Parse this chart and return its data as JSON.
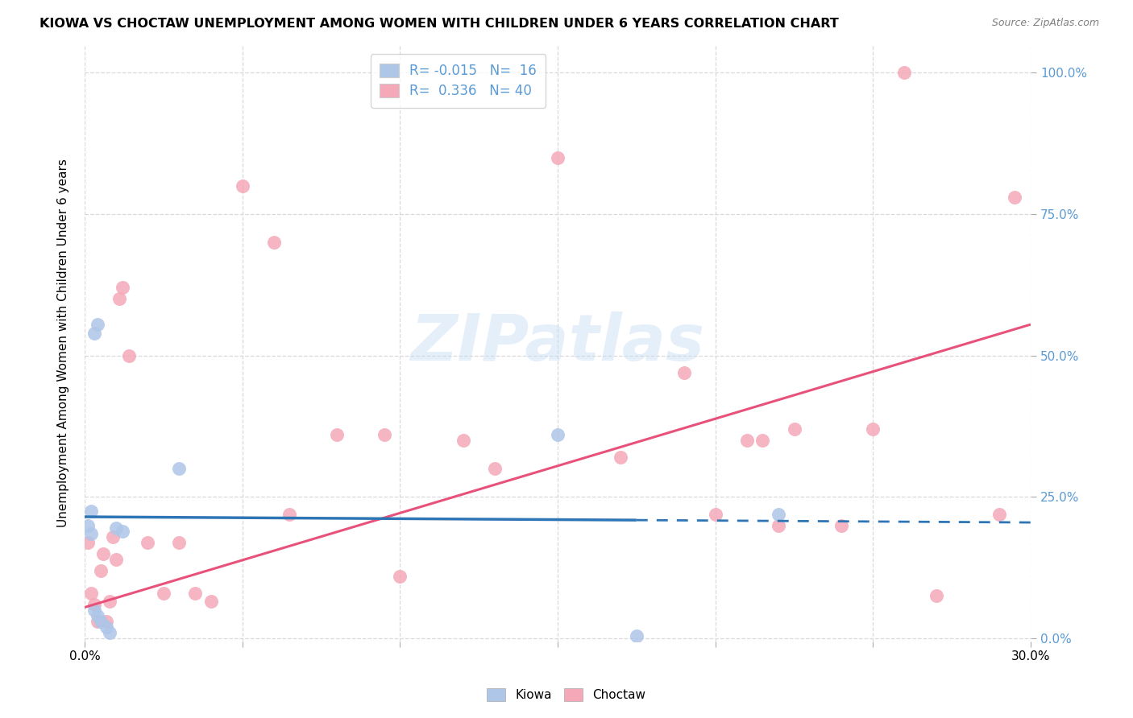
{
  "title": "KIOWA VS CHOCTAW UNEMPLOYMENT AMONG WOMEN WITH CHILDREN UNDER 6 YEARS CORRELATION CHART",
  "source": "Source: ZipAtlas.com",
  "ylabel": "Unemployment Among Women with Children Under 6 years",
  "xlim": [
    0.0,
    0.3
  ],
  "ylim": [
    -0.005,
    1.05
  ],
  "yticks": [
    0.0,
    0.25,
    0.5,
    0.75,
    1.0
  ],
  "ytick_labels": [
    "0.0%",
    "25.0%",
    "50.0%",
    "75.0%",
    "100.0%"
  ],
  "xticks": [
    0.0,
    0.05,
    0.1,
    0.15,
    0.2,
    0.25,
    0.3
  ],
  "xtick_labels": [
    "0.0%",
    "",
    "",
    "",
    "",
    "",
    "30.0%"
  ],
  "kiowa_x": [
    0.001,
    0.002,
    0.003,
    0.004,
    0.005,
    0.007,
    0.008,
    0.01,
    0.012,
    0.003,
    0.004,
    0.03,
    0.15,
    0.175,
    0.22,
    0.002
  ],
  "kiowa_y": [
    0.2,
    0.185,
    0.05,
    0.04,
    0.03,
    0.02,
    0.01,
    0.195,
    0.19,
    0.54,
    0.555,
    0.3,
    0.36,
    0.005,
    0.22,
    0.225
  ],
  "choctaw_x": [
    0.001,
    0.002,
    0.003,
    0.004,
    0.005,
    0.006,
    0.007,
    0.008,
    0.009,
    0.01,
    0.011,
    0.012,
    0.014,
    0.02,
    0.025,
    0.03,
    0.035,
    0.04,
    0.05,
    0.06,
    0.065,
    0.08,
    0.095,
    0.1,
    0.12,
    0.13,
    0.15,
    0.17,
    0.19,
    0.2,
    0.21,
    0.215,
    0.22,
    0.225,
    0.24,
    0.25,
    0.26,
    0.27,
    0.29,
    0.295
  ],
  "choctaw_y": [
    0.17,
    0.08,
    0.06,
    0.03,
    0.12,
    0.15,
    0.03,
    0.065,
    0.18,
    0.14,
    0.6,
    0.62,
    0.5,
    0.17,
    0.08,
    0.17,
    0.08,
    0.065,
    0.8,
    0.7,
    0.22,
    0.36,
    0.36,
    0.11,
    0.35,
    0.3,
    0.85,
    0.32,
    0.47,
    0.22,
    0.35,
    0.35,
    0.2,
    0.37,
    0.2,
    0.37,
    1.0,
    0.075,
    0.22,
    0.78
  ],
  "kiowa_color": "#aec6e8",
  "choctaw_color": "#f4a8b8",
  "kiowa_R": -0.015,
  "kiowa_N": 16,
  "choctaw_R": 0.336,
  "choctaw_N": 40,
  "trendline_kiowa_x0": 0.0,
  "trendline_kiowa_y0": 0.215,
  "trendline_kiowa_x1": 0.3,
  "trendline_kiowa_y1": 0.205,
  "trendline_kiowa_solid_end_x": 0.175,
  "trendline_choctaw_x0": 0.0,
  "trendline_choctaw_y0": 0.055,
  "trendline_choctaw_x1": 0.3,
  "trendline_choctaw_y1": 0.555,
  "trendline_kiowa_color": "#2e75b6",
  "trendline_choctaw_color": "#e8527a",
  "background_color": "#ffffff",
  "grid_color": "#d9d9d9",
  "watermark": "ZIPatlas",
  "right_ytick_color": "#5b9bd5",
  "title_fontsize": 11.5,
  "source_fontsize": 9,
  "label_fontsize": 11,
  "legend_fontsize": 12
}
